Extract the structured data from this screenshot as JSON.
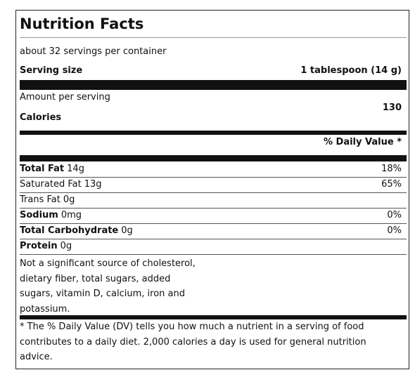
{
  "header": {
    "title": "Nutrition Facts"
  },
  "servings": {
    "per_container": "about 32 servings per container",
    "size_label": "Serving size",
    "size_value": "1 tablespoon (14 g)"
  },
  "calories": {
    "amount_label": "Amount per serving",
    "label": "Calories",
    "value": "130"
  },
  "daily_value_header": "% Daily Value *",
  "nutrients": [
    {
      "name": "Total Fat",
      "amount": "14g",
      "dv": "18%",
      "bold": true
    },
    {
      "name": "Saturated Fat",
      "amount": "13g",
      "dv": "65%",
      "bold": false
    },
    {
      "name": "Trans Fat",
      "amount": "0g",
      "dv": null,
      "bold": false
    },
    {
      "name": "Sodium",
      "amount": "0mg",
      "dv": "0%",
      "bold": true
    },
    {
      "name": "Total Carbohydrate",
      "amount": "0g",
      "dv": "0%",
      "bold": true
    },
    {
      "name": "Protein",
      "amount": "0g",
      "dv": null,
      "bold": true
    }
  ],
  "note": [
    "Not a significant source of cholesterol,",
    "dietary fiber, total sugars, added",
    "sugars, vitamin D, calcium, iron and",
    "potassium."
  ],
  "footnote": [
    "* The % Daily Value (DV) tells you how much a nutrient in a serving of food",
    "contributes to a daily diet. 2,000 calories a day is used for general nutrition",
    "advice."
  ]
}
